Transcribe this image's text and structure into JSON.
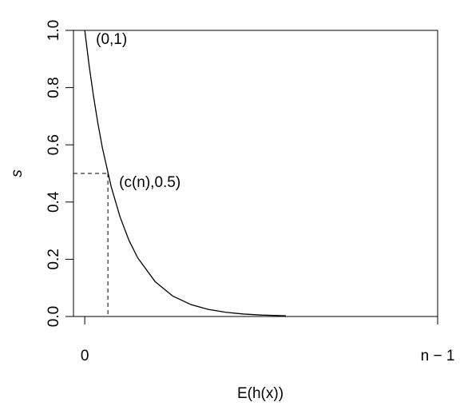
{
  "chart_data": {
    "type": "line",
    "xlabel": "E(h(x))",
    "ylabel": "s",
    "x": [
      0,
      0.0125,
      0.025,
      0.0375,
      0.05,
      0.075,
      0.1,
      0.125,
      0.15,
      0.2,
      0.25,
      0.3,
      0.35,
      0.4,
      0.45,
      0.5,
      0.57
    ],
    "series": [
      {
        "color": "#000000",
        "values": [
          1,
          0.876,
          0.768,
          0.673,
          0.589,
          0.453,
          0.348,
          0.267,
          0.205,
          0.121,
          0.071,
          0.042,
          0.0247,
          0.0146,
          0.0086,
          0.0051,
          0.0024
        ]
      }
    ],
    "xlim": [
      -0.032,
      1
    ],
    "ylim": [
      0,
      1
    ],
    "xticks": [
      0,
      {
        "value": 1,
        "label": "n − 1"
      }
    ],
    "yticks": [
      {
        "value": 0,
        "label": "0.0"
      },
      0.2,
      0.4,
      0.6,
      0.8,
      {
        "value": 1,
        "label": "1.0"
      }
    ],
    "reference_point": {
      "x": 0.0656,
      "y": 0.5
    },
    "annotations": [
      {
        "text": "(0,1)",
        "x": 0,
        "y": 1
      },
      {
        "text": "(c(n),0.5)",
        "x": 0.0656,
        "y": 0.5
      }
    ]
  }
}
